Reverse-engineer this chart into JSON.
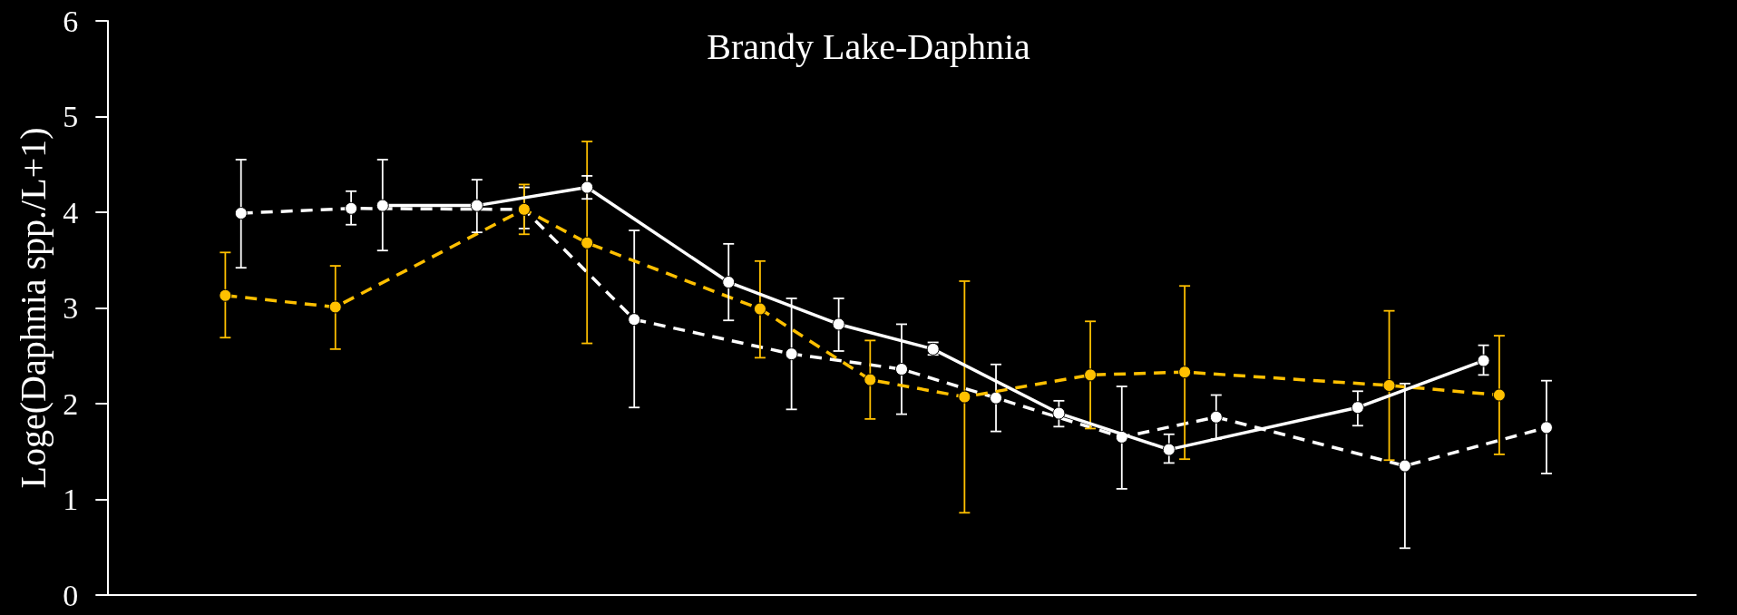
{
  "chart_data": {
    "type": "line",
    "title": "Brandy Lake-Daphnia",
    "ylabel": "Loge(Daphnia spp./L+1)",
    "categories": [
      null,
      null,
      null,
      null,
      null,
      null,
      null,
      null,
      null,
      null,
      null,
      null,
      null,
      null,
      null,
      null,
      null,
      null,
      null,
      null,
      null,
      null,
      null,
      null,
      null,
      null,
      null,
      null,
      null,
      null,
      null,
      null,
      null,
      null,
      null,
      null,
      null,
      null,
      null,
      null,
      null,
      null,
      null,
      null,
      null,
      null,
      null,
      null,
      null,
      null,
      null,
      null,
      null,
      null,
      null,
      null,
      null,
      null,
      null,
      null,
      null,
      null,
      null,
      null,
      null,
      null,
      null,
      null,
      null,
      null,
      null,
      null,
      null,
      null,
      null,
      null,
      null,
      null,
      null,
      null,
      null,
      null,
      null,
      null,
      null,
      null,
      null,
      null,
      null,
      null,
      null,
      null,
      null,
      null,
      null,
      null,
      null,
      null,
      null,
      null,
      null
    ],
    "ylim": [
      0,
      6
    ],
    "yticks": [
      0,
      1,
      2,
      3,
      4,
      5,
      6
    ],
    "tick_labels": "y",
    "marker": "circle",
    "series": [
      {
        "color": "#ffffff",
        "line_style": "dashed",
        "values": [
          null,
          null,
          null,
          null,
          null,
          null,
          null,
          null,
          3.99,
          null,
          null,
          null,
          null,
          null,
          null,
          4.04,
          null,
          null,
          null,
          null,
          null,
          null,
          null,
          null,
          null,
          null,
          4.03,
          null,
          null,
          null,
          null,
          null,
          null,
          2.88,
          null,
          null,
          null,
          null,
          null,
          null,
          null,
          null,
          null,
          2.52,
          null,
          null,
          null,
          null,
          null,
          null,
          2.36,
          null,
          null,
          null,
          null,
          null,
          2.06,
          null,
          null,
          null,
          null,
          null,
          null,
          null,
          1.65,
          null,
          null,
          null,
          null,
          null,
          1.86,
          null,
          null,
          null,
          null,
          null,
          null,
          null,
          null,
          null,
          null,
          null,
          1.35,
          null,
          null,
          null,
          null,
          null,
          null,
          null,
          null,
          1.75,
          null,
          null,
          null,
          null,
          null,
          null,
          null,
          null,
          null
        ],
        "errors": [
          null,
          null,
          null,
          null,
          null,
          null,
          null,
          null,
          [
            3.42,
            4.55
          ],
          null,
          null,
          null,
          null,
          null,
          null,
          [
            3.87,
            4.22
          ],
          null,
          null,
          null,
          null,
          null,
          null,
          null,
          null,
          null,
          null,
          [
            3.83,
            4.26
          ],
          null,
          null,
          null,
          null,
          null,
          null,
          [
            1.96,
            3.81
          ],
          null,
          null,
          null,
          null,
          null,
          null,
          null,
          null,
          null,
          [
            1.94,
            3.1
          ],
          null,
          null,
          null,
          null,
          null,
          null,
          [
            1.89,
            2.83
          ],
          null,
          null,
          null,
          null,
          null,
          [
            1.71,
            2.41
          ],
          null,
          null,
          null,
          null,
          null,
          null,
          null,
          [
            1.11,
            2.18
          ],
          null,
          null,
          null,
          null,
          null,
          [
            1.63,
            2.09
          ],
          null,
          null,
          null,
          null,
          null,
          null,
          null,
          null,
          null,
          null,
          null,
          [
            0.49,
            2.21
          ],
          null,
          null,
          null,
          null,
          null,
          null,
          null,
          null,
          [
            1.27,
            2.24
          ],
          null,
          null,
          null,
          null,
          null,
          null,
          null,
          null,
          null
        ]
      },
      {
        "color": "#ffc000",
        "line_style": "dashed",
        "values": [
          null,
          null,
          null,
          null,
          null,
          null,
          null,
          3.13,
          null,
          null,
          null,
          null,
          null,
          null,
          3.01,
          null,
          null,
          null,
          null,
          null,
          null,
          null,
          null,
          null,
          null,
          null,
          4.03,
          null,
          null,
          null,
          3.68,
          null,
          null,
          null,
          null,
          null,
          null,
          null,
          null,
          null,
          null,
          2.99,
          null,
          null,
          null,
          null,
          null,
          null,
          2.25,
          null,
          null,
          null,
          null,
          null,
          2.07,
          null,
          null,
          null,
          null,
          null,
          null,
          null,
          2.3,
          null,
          null,
          null,
          null,
          null,
          2.33,
          null,
          null,
          null,
          null,
          null,
          null,
          null,
          null,
          null,
          null,
          null,
          null,
          2.19,
          null,
          null,
          null,
          null,
          null,
          null,
          2.09,
          null,
          null,
          null,
          null,
          null,
          null,
          null,
          null,
          null,
          null,
          null,
          null
        ],
        "errors": [
          null,
          null,
          null,
          null,
          null,
          null,
          null,
          [
            2.69,
            3.58
          ],
          null,
          null,
          null,
          null,
          null,
          null,
          [
            2.57,
            3.44
          ],
          null,
          null,
          null,
          null,
          null,
          null,
          null,
          null,
          null,
          null,
          null,
          [
            3.77,
            4.29
          ],
          null,
          null,
          null,
          [
            2.63,
            4.74
          ],
          null,
          null,
          null,
          null,
          null,
          null,
          null,
          null,
          null,
          null,
          [
            2.48,
            3.49
          ],
          null,
          null,
          null,
          null,
          null,
          null,
          [
            1.84,
            2.66
          ],
          null,
          null,
          null,
          null,
          null,
          [
            0.86,
            3.28
          ],
          null,
          null,
          null,
          null,
          null,
          null,
          null,
          [
            1.74,
            2.86
          ],
          null,
          null,
          null,
          null,
          null,
          [
            1.42,
            3.23
          ],
          null,
          null,
          null,
          null,
          null,
          null,
          null,
          null,
          null,
          null,
          null,
          null,
          [
            1.41,
            2.97
          ],
          null,
          null,
          null,
          null,
          null,
          null,
          [
            1.47,
            2.71
          ],
          null,
          null,
          null,
          null,
          null,
          null,
          null,
          null,
          null,
          null,
          null,
          null
        ]
      },
      {
        "color": "#ffffff",
        "line_style": "solid",
        "values": [
          null,
          null,
          null,
          null,
          null,
          null,
          null,
          null,
          null,
          null,
          null,
          null,
          null,
          null,
          null,
          null,
          null,
          4.07,
          null,
          null,
          null,
          null,
          null,
          4.07,
          null,
          null,
          null,
          null,
          null,
          null,
          4.26,
          null,
          null,
          null,
          null,
          null,
          null,
          null,
          null,
          3.27,
          null,
          null,
          null,
          null,
          null,
          null,
          2.83,
          null,
          null,
          null,
          null,
          null,
          2.57,
          null,
          null,
          null,
          null,
          null,
          null,
          null,
          1.9,
          null,
          null,
          null,
          null,
          null,
          null,
          1.52,
          null,
          null,
          null,
          null,
          null,
          null,
          null,
          null,
          null,
          null,
          null,
          1.96,
          null,
          null,
          null,
          null,
          null,
          null,
          null,
          2.45,
          null,
          null,
          null,
          null,
          null,
          null,
          null,
          null,
          null,
          null,
          null,
          null,
          null
        ],
        "errors": [
          null,
          null,
          null,
          null,
          null,
          null,
          null,
          null,
          null,
          null,
          null,
          null,
          null,
          null,
          null,
          null,
          null,
          [
            3.6,
            4.55
          ],
          null,
          null,
          null,
          null,
          null,
          [
            3.79,
            4.34
          ],
          null,
          null,
          null,
          null,
          null,
          null,
          [
            4.14,
            4.38
          ],
          null,
          null,
          null,
          null,
          null,
          null,
          null,
          null,
          [
            2.87,
            3.67
          ],
          null,
          null,
          null,
          null,
          null,
          null,
          [
            2.55,
            3.1
          ],
          null,
          null,
          null,
          null,
          null,
          [
            2.51,
            2.64
          ],
          null,
          null,
          null,
          null,
          null,
          null,
          null,
          [
            1.76,
            2.03
          ],
          null,
          null,
          null,
          null,
          null,
          null,
          [
            1.38,
            1.68
          ],
          null,
          null,
          null,
          null,
          null,
          null,
          null,
          null,
          null,
          null,
          null,
          [
            1.77,
            2.13
          ],
          null,
          null,
          null,
          null,
          null,
          null,
          null,
          [
            2.3,
            2.61
          ],
          null,
          null,
          null,
          null,
          null,
          null,
          null,
          null,
          null,
          null,
          null,
          null,
          null
        ]
      }
    ]
  }
}
